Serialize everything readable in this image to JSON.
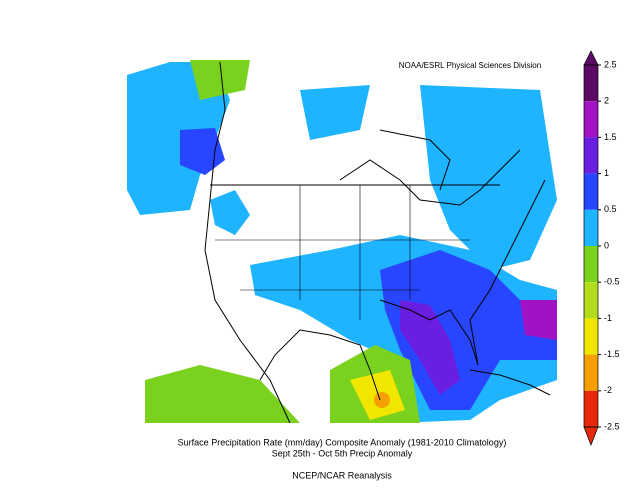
{
  "map": {
    "credit": "NOAA/ESRL Physical Sciences Division",
    "title_lines": [
      "Surface Precipitation Rate (mm/day) Composite Anomaly (1981-2010 Climatology)",
      "Sept 25th - Oct 5th Precip Anomaly",
      "NCEP/NCAR Reanalysis"
    ],
    "colorbar": {
      "ticks": [
        2.5,
        2,
        1.5,
        1,
        0.5,
        0,
        -0.5,
        -1,
        -1.5,
        -2,
        -2.5
      ],
      "colors": [
        "#5c0a66",
        "#a012c4",
        "#6a1ee0",
        "#2846ff",
        "#1eb4ff",
        "#7ad21e",
        "#b4dc1e",
        "#f0e600",
        "#f5a000",
        "#e8280a"
      ]
    }
  }
}
